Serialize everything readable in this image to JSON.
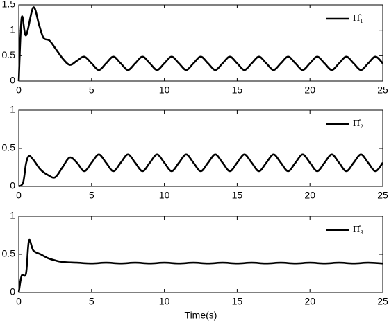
{
  "chart_data": [
    {
      "type": "line",
      "xlim": [
        0,
        25
      ],
      "xticks": [
        0,
        5,
        10,
        15,
        20,
        25
      ],
      "ylim": [
        0,
        1.5
      ],
      "yticks": [
        0,
        0.5,
        1,
        1.5
      ],
      "legend": "upper right",
      "x": [
        0,
        0.2,
        0.5,
        1.0,
        1.4,
        1.7,
        2.1,
        2.5,
        3.0,
        3.5,
        4.0,
        4.5,
        5.0,
        5.5,
        6.0,
        6.5,
        7.0,
        7.5,
        8.0,
        8.5,
        9.0,
        9.5,
        10.0,
        10.5,
        11.0,
        11.5,
        12.0,
        12.5,
        13.0,
        13.5,
        14.0,
        14.5,
        15.0,
        15.5,
        16.0,
        16.5,
        17.0,
        17.5,
        18.0,
        18.5,
        19.0,
        19.5,
        20.0,
        20.5,
        21.0,
        21.5,
        22.0,
        22.5,
        23.0,
        23.5,
        24.0,
        24.5,
        25.0
      ],
      "series": [
        {
          "name": "Π̂₁",
          "color": "#000000",
          "values": [
            0,
            1.25,
            0.9,
            1.45,
            1.1,
            0.85,
            0.8,
            0.65,
            0.45,
            0.32,
            0.4,
            0.48,
            0.35,
            0.22,
            0.35,
            0.48,
            0.35,
            0.22,
            0.35,
            0.48,
            0.35,
            0.22,
            0.35,
            0.48,
            0.35,
            0.22,
            0.35,
            0.48,
            0.35,
            0.22,
            0.35,
            0.48,
            0.35,
            0.22,
            0.35,
            0.48,
            0.35,
            0.22,
            0.35,
            0.48,
            0.35,
            0.22,
            0.35,
            0.48,
            0.35,
            0.22,
            0.35,
            0.48,
            0.35,
            0.22,
            0.35,
            0.48,
            0.35
          ]
        }
      ]
    },
    {
      "type": "line",
      "xlim": [
        0,
        25
      ],
      "xticks": [
        0,
        5,
        10,
        15,
        20,
        25
      ],
      "ylim": [
        0,
        1
      ],
      "yticks": [
        0,
        0.5,
        1
      ],
      "legend": "upper right",
      "x": [
        0,
        0.3,
        0.5,
        0.7,
        1.0,
        1.5,
        2.0,
        2.5,
        3.0,
        3.5,
        4.0,
        4.5,
        5.0,
        5.5,
        6.0,
        6.5,
        7.0,
        7.5,
        8.0,
        8.5,
        9.0,
        9.5,
        10.0,
        10.5,
        11.0,
        11.5,
        12.0,
        12.5,
        13.0,
        13.5,
        14.0,
        14.5,
        15.0,
        15.5,
        16.0,
        16.5,
        17.0,
        17.5,
        18.0,
        18.5,
        19.0,
        19.5,
        20.0,
        20.5,
        21.0,
        21.5,
        22.0,
        22.5,
        23.0,
        23.5,
        24.0,
        24.5,
        25.0
      ],
      "series": [
        {
          "name": "Π̂₂",
          "color": "#000000",
          "values": [
            0,
            0.05,
            0.3,
            0.4,
            0.35,
            0.22,
            0.15,
            0.12,
            0.25,
            0.38,
            0.31,
            0.2,
            0.31,
            0.42,
            0.31,
            0.2,
            0.31,
            0.42,
            0.31,
            0.2,
            0.31,
            0.42,
            0.31,
            0.2,
            0.31,
            0.42,
            0.31,
            0.2,
            0.31,
            0.42,
            0.31,
            0.2,
            0.31,
            0.42,
            0.31,
            0.2,
            0.31,
            0.42,
            0.31,
            0.2,
            0.31,
            0.42,
            0.31,
            0.2,
            0.31,
            0.42,
            0.31,
            0.2,
            0.31,
            0.42,
            0.31,
            0.2,
            0.31
          ]
        }
      ]
    },
    {
      "type": "line",
      "xlabel": "Time(s)",
      "xlim": [
        0,
        25
      ],
      "xticks": [
        0,
        5,
        10,
        15,
        20,
        25
      ],
      "ylim": [
        0,
        1
      ],
      "yticks": [
        0,
        0.5,
        1
      ],
      "legend": "upper right",
      "x": [
        0,
        0.2,
        0.5,
        0.7,
        1.0,
        1.5,
        2.0,
        2.5,
        3.0,
        4,
        5,
        6,
        7,
        8,
        9,
        10,
        11,
        12,
        13,
        14,
        15,
        16,
        17,
        18,
        19,
        20,
        21,
        22,
        23,
        24,
        25
      ],
      "series": [
        {
          "name": "Π̂₃",
          "color": "#000000",
          "values": [
            0,
            0.22,
            0.25,
            0.68,
            0.55,
            0.5,
            0.45,
            0.42,
            0.4,
            0.39,
            0.38,
            0.39,
            0.38,
            0.39,
            0.38,
            0.39,
            0.38,
            0.39,
            0.38,
            0.39,
            0.38,
            0.39,
            0.38,
            0.39,
            0.38,
            0.39,
            0.38,
            0.39,
            0.38,
            0.39,
            0.38
          ]
        }
      ]
    }
  ]
}
